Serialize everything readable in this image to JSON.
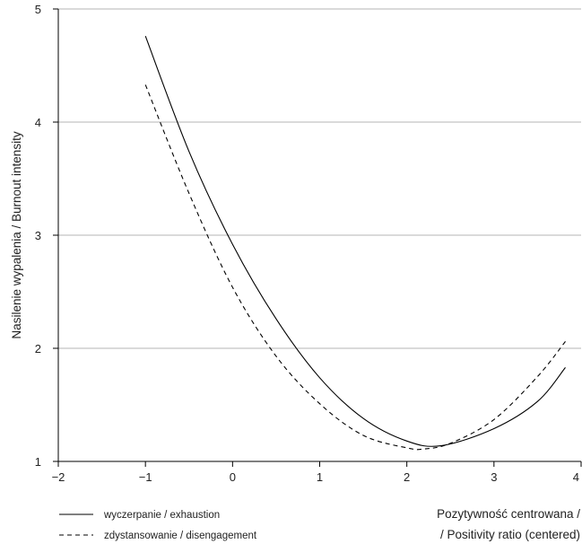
{
  "chart_data": {
    "type": "line",
    "ylabel": "Nasilenie wypalenia / Burnout intensity",
    "xlabel_line1": "Pozytywność centrowana /",
    "xlabel_line2": "/ Positivity ratio (centered)",
    "xlim": [
      -2,
      4
    ],
    "ylim": [
      1,
      5
    ],
    "x_ticks": [
      "−2",
      "−1",
      "0",
      "1",
      "2",
      "3",
      "4"
    ],
    "y_ticks": [
      "1",
      "2",
      "3",
      "4",
      "5"
    ],
    "grid": "horizontal",
    "legend_placement": "bottom-left",
    "series": [
      {
        "name": "wyczerpanie / exhaustion",
        "style": "solid",
        "color": "#000000",
        "x": [
          -1.0,
          -0.5,
          0.0,
          0.5,
          1.0,
          1.5,
          2.0,
          2.4,
          3.0,
          3.5,
          3.82
        ],
        "y": [
          4.76,
          3.74,
          2.92,
          2.26,
          1.74,
          1.38,
          1.18,
          1.14,
          1.29,
          1.53,
          1.83
        ]
      },
      {
        "name": "zdystansowanie / disengagement",
        "style": "dashed",
        "color": "#000000",
        "x": [
          -1.0,
          -0.5,
          0.0,
          0.5,
          1.0,
          1.5,
          2.0,
          2.2,
          2.5,
          3.0,
          3.5,
          3.82
        ],
        "y": [
          4.33,
          3.37,
          2.54,
          1.93,
          1.51,
          1.23,
          1.12,
          1.11,
          1.16,
          1.37,
          1.75,
          2.06
        ]
      }
    ]
  }
}
